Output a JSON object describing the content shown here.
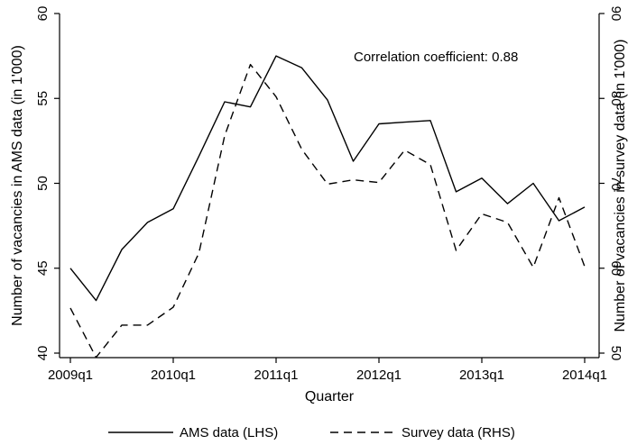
{
  "chart_data": {
    "type": "line",
    "x": [
      "2009q1",
      "2009q2",
      "2009q3",
      "2009q4",
      "2010q1",
      "2010q2",
      "2010q3",
      "2010q4",
      "2011q1",
      "2011q2",
      "2011q3",
      "2011q4",
      "2012q1",
      "2012q2",
      "2012q3",
      "2012q4",
      "2013q1",
      "2013q2",
      "2013q3",
      "2013q4",
      "2014q1"
    ],
    "x_tick_labels": [
      "2009q1",
      "2010q1",
      "2011q1",
      "2012q1",
      "2013q1",
      "2014q1"
    ],
    "xlabel": "Quarter",
    "ylabel_left": "Number of vacancies in AMS data (in 1'000)",
    "ylabel_right": "Number of vacancies in survey data (in 1'000)",
    "ylim_left": [
      40,
      60
    ],
    "ylim_right": [
      50,
      90
    ],
    "yticks_left": [
      "40",
      "45",
      "50",
      "55",
      "60"
    ],
    "yticks_right": [
      "50",
      "60",
      "70",
      "80",
      "90"
    ],
    "annotation": "Correlation coefficient: 0.88",
    "legend_position": "bottom",
    "series": [
      {
        "name": "AMS data (LHS)",
        "axis": "left",
        "style": "solid",
        "color": "#000000",
        "values": [
          45.0,
          43.1,
          46.1,
          47.7,
          48.5,
          51.6,
          54.8,
          54.5,
          57.5,
          56.8,
          54.9,
          51.3,
          53.5,
          53.6,
          53.7,
          49.5,
          50.3,
          48.8,
          50.0,
          47.8,
          48.6
        ]
      },
      {
        "name": "Survey data (RHS)",
        "axis": "right",
        "style": "dashed",
        "color": "#000000",
        "values": [
          55.3,
          49.5,
          53.3,
          53.3,
          55.4,
          61.8,
          75.6,
          84.0,
          80.2,
          74.0,
          69.9,
          70.4,
          70.1,
          73.9,
          72.2,
          62.1,
          66.4,
          65.4,
          60.1,
          68.3,
          60.2
        ]
      }
    ]
  }
}
